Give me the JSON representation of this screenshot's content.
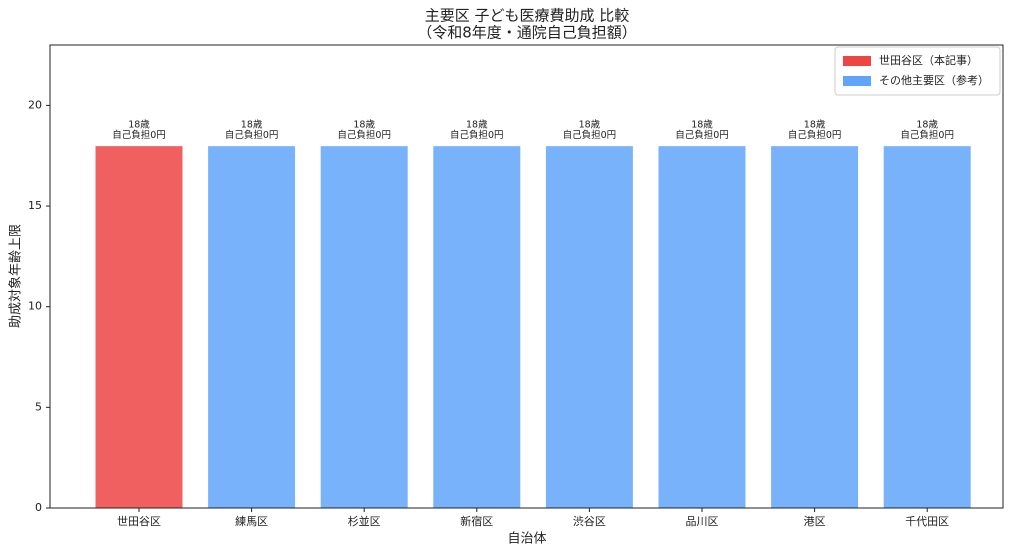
{
  "chart_data": {
    "type": "bar",
    "title": "主要区 子ども医療費助成 比較",
    "subtitle": "（令和8年度・通院自己負担額）",
    "x_label": "自治体",
    "y_label": "助成対象年齢上限",
    "categories": [
      "世田谷区",
      "練馬区",
      "杉並区",
      "新宿区",
      "渋谷区",
      "品川区",
      "港区",
      "千代田区"
    ],
    "values": [
      18,
      18,
      18,
      18,
      18,
      18,
      18,
      18
    ],
    "value_labels": [
      "18歳\n自己負担0円",
      "18歳\n自己負担0円",
      "18歳\n自己負担0円",
      "18歳\n自己負担0円",
      "18歳\n自己負担0円",
      "18歳\n自己負担0円",
      "18歳\n自己負担0円",
      "18歳\n自己負担0円"
    ],
    "colors": [
      "#ef4444",
      "#60a5fa",
      "#60a5fa",
      "#60a5fa",
      "#60a5fa",
      "#60a5fa",
      "#60a5fa",
      "#60a5fa"
    ],
    "legend": [
      {
        "name": "世田谷区（本記事）",
        "color": "#ef4444"
      },
      {
        "name": "その他主要区（参考）",
        "color": "#60a5fa"
      }
    ],
    "legend_position": "upper right",
    "ylim": [
      0,
      23
    ],
    "yticks": [
      0,
      5,
      10,
      15,
      20
    ]
  }
}
